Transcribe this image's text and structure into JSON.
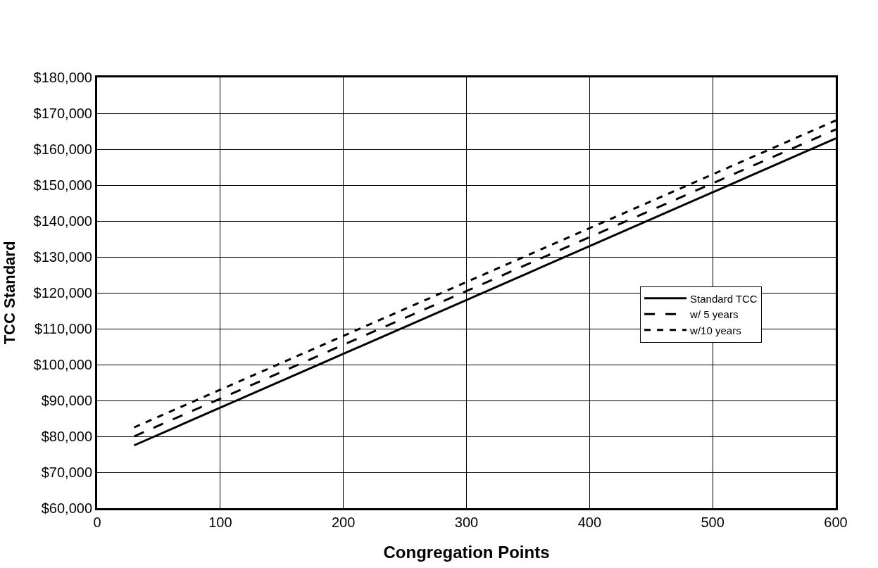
{
  "chart_data": {
    "type": "line",
    "xlabel": "Congregation Points",
    "ylabel": "TCC Standard",
    "xlim": [
      0,
      600
    ],
    "xticks": [
      0,
      100,
      200,
      300,
      400,
      500,
      600
    ],
    "ylim": [
      60000,
      180000
    ],
    "yticks": [
      {
        "value": 60000,
        "label": "$60,000"
      },
      {
        "value": 70000,
        "label": "$70,000"
      },
      {
        "value": 80000,
        "label": "$80,000"
      },
      {
        "value": 90000,
        "label": "$90,000"
      },
      {
        "value": 100000,
        "label": "$100,000"
      },
      {
        "value": 110000,
        "label": "$110,000"
      },
      {
        "value": 120000,
        "label": "$120,000"
      },
      {
        "value": 130000,
        "label": "$130,000"
      },
      {
        "value": 140000,
        "label": "$140,000"
      },
      {
        "value": 150000,
        "label": "$150,000"
      },
      {
        "value": 160000,
        "label": "$160,000"
      },
      {
        "value": 170000,
        "label": "$170,000"
      },
      {
        "value": 180000,
        "label": "$180,000"
      }
    ],
    "grid": true,
    "legend": "right",
    "x": [
      30,
      600
    ],
    "series": [
      {
        "name": "Standard TCC",
        "color": "#000000",
        "line_style": "solid",
        "values": [
          77500,
          163000
        ]
      },
      {
        "name": "w/ 5 years",
        "color": "#000000",
        "line_style": "dashed",
        "values": [
          80000,
          165500
        ]
      },
      {
        "name": "w/10 years",
        "color": "#000000",
        "line_style": "dotted",
        "values": [
          82500,
          168000
        ]
      }
    ]
  }
}
